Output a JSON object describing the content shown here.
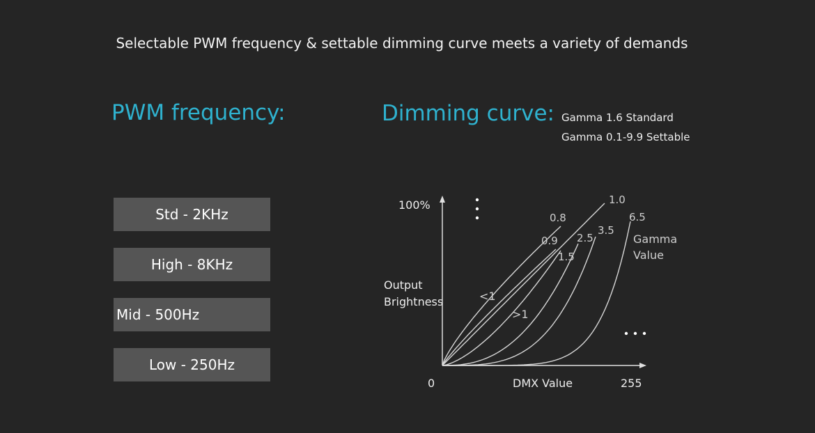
{
  "headline": "Selectable PWM frequency & settable dimming curve meets a variety of demands",
  "pwm": {
    "title": "PWM frequency:",
    "options": [
      "Std - 2KHz",
      "High - 8KHz",
      "Mid - 500Hz",
      "Low - 250Hz"
    ]
  },
  "curve": {
    "title": "Dimming curve:",
    "notes": [
      "Gamma 1.6 Standard",
      "Gamma 0.1-9.9 Settable"
    ]
  },
  "colors": {
    "background": "#252525",
    "accent": "#2fb2cf",
    "button": "#555555",
    "curve_line": "#d8d8d8"
  },
  "chart_data": {
    "type": "line",
    "xlabel": "DMX Value",
    "ylabel": "Output Brightness",
    "x_tick_labels": [
      "0",
      "255"
    ],
    "y_tick_labels": [
      "100%"
    ],
    "xlim": [
      0,
      255
    ],
    "ylim": [
      0,
      100
    ],
    "gamma_values": [
      0.8,
      0.9,
      1.0,
      1.5,
      2.5,
      3.5,
      6.5
    ],
    "curve_labels": [
      "0.8",
      "0.9",
      "1.0",
      "1.5",
      "2.5",
      "3.5",
      "6.5"
    ],
    "legend_label": "Gamma Value",
    "region_labels": [
      "<1",
      ">1"
    ],
    "ellipsis_vertical": "⋮",
    "ellipsis_horizontal": "…"
  }
}
